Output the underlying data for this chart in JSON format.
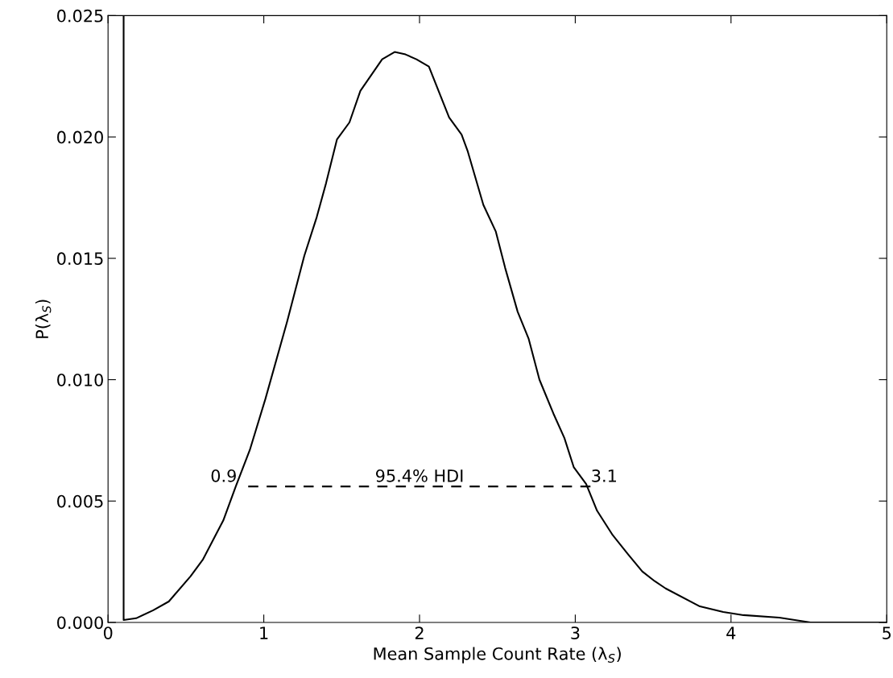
{
  "chart_data": {
    "type": "line",
    "xlabel": "Mean Sample Count Rate (λ$_{S}$)",
    "ylabel": "P(λ$_{S}$)",
    "xlim": [
      0,
      5
    ],
    "ylim": [
      0,
      0.025
    ],
    "xticks": [
      0,
      1,
      2,
      3,
      4,
      5
    ],
    "yticks": [
      {
        "value": 0,
        "label": "0.000"
      },
      0.005,
      {
        "value": 0.01,
        "label": "0.010"
      },
      0.015,
      {
        "value": 0.02,
        "label": "0.020"
      },
      0.025
    ],
    "grid": false,
    "marker": "none",
    "series": [
      {
        "color": "#000000",
        "line_style": "solid",
        "x": [
          0.1,
          0.1,
          0.18,
          0.29,
          0.39,
          0.53,
          0.61,
          0.74,
          0.82,
          0.91,
          1.01,
          1.15,
          1.26,
          1.34,
          1.4,
          1.47,
          1.55,
          1.62,
          1.76,
          1.84,
          1.91,
          1.98,
          2.06,
          2.19,
          2.27,
          2.31,
          2.41,
          2.49,
          2.55,
          2.63,
          2.7,
          2.77,
          2.86,
          2.93,
          2.99,
          3.07,
          3.14,
          3.24,
          3.34,
          3.43,
          3.51,
          3.58,
          3.8,
          3.95,
          4.08,
          4.31,
          4.51,
          5.0
        ],
        "values": [
          0.025,
          0.0001,
          0.00017,
          0.0005,
          0.00086,
          0.0019,
          0.0026,
          0.0042,
          0.0056,
          0.0071,
          0.0092,
          0.0124,
          0.0151,
          0.0167,
          0.0181,
          0.0199,
          0.0206,
          0.0219,
          0.0232,
          0.0235,
          0.0234,
          0.0232,
          0.0229,
          0.0208,
          0.0201,
          0.0194,
          0.0172,
          0.0161,
          0.0146,
          0.0128,
          0.0117,
          0.01,
          0.0086,
          0.0076,
          0.0064,
          0.0057,
          0.0046,
          0.0036,
          0.0028,
          0.0021,
          0.0017,
          0.0014,
          0.00066,
          0.00043,
          0.0003,
          0.0002,
          0.0,
          0.0
        ]
      },
      {
        "color": "#000000",
        "line_style": "dashed",
        "x": [
          0.9,
          3.1
        ],
        "values": [
          0.0056,
          0.0056
        ]
      }
    ],
    "annotations": [
      {
        "text": "0.9",
        "x": 0.9,
        "y": 0.0056
      },
      {
        "text": "3.1",
        "x": 3.1,
        "y": 0.0056
      },
      {
        "text": "95.4% HDI",
        "x": 2.0,
        "y": 0.0056
      }
    ]
  }
}
